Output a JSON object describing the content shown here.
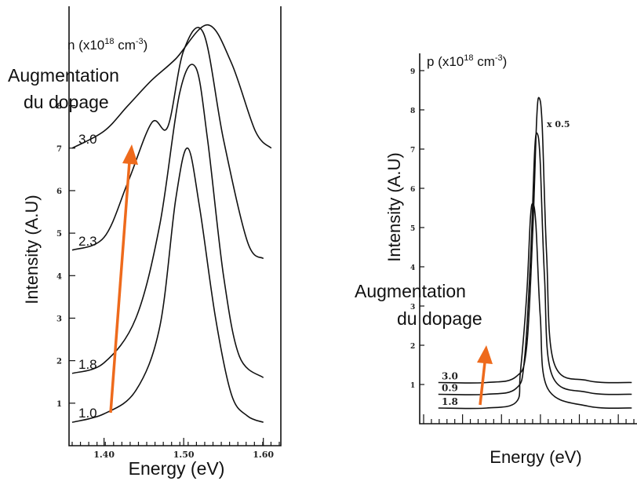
{
  "chart_data": [
    {
      "type": "line",
      "panel": "left",
      "xlabel": "Energy (eV)",
      "ylabel": "Intensity (A.U)",
      "legend_title": "n (x10",
      "legend_title_sup": "18",
      "legend_title_unit": " cm",
      "legend_title_unit_sup": "-3",
      "legend_title_close": ")",
      "annotation_lines": [
        "Augmentation",
        "du dopage"
      ],
      "x_ticks": [
        "1.40",
        "1.50",
        "1.60"
      ],
      "y_ticks": [
        "1",
        "2",
        "3",
        "4",
        "5",
        "6",
        "7",
        "8"
      ],
      "xlim": [
        1.36,
        1.62
      ],
      "series": [
        {
          "name": "1.0",
          "baseline": 0.55,
          "peak_x": 1.505,
          "peak_y": 7.0,
          "x": [
            1.36,
            1.4,
            1.44,
            1.47,
            1.49,
            1.505,
            1.52,
            1.54,
            1.56,
            1.58,
            1.6
          ],
          "y": [
            0.55,
            0.75,
            1.3,
            2.8,
            5.8,
            7.0,
            5.6,
            3.0,
            1.2,
            0.7,
            0.55
          ]
        },
        {
          "name": "1.8",
          "baseline": 1.7,
          "peak_x": 1.515,
          "peak_y": 8.9,
          "x": [
            1.36,
            1.4,
            1.44,
            1.47,
            1.495,
            1.515,
            1.53,
            1.55,
            1.57,
            1.6
          ],
          "y": [
            1.7,
            1.95,
            3.0,
            5.2,
            8.3,
            8.9,
            7.2,
            4.0,
            2.1,
            1.6
          ]
        },
        {
          "name": "2.3",
          "baseline": 4.6,
          "peak_x": 1.525,
          "peak_y": 9.7,
          "x": [
            1.36,
            1.4,
            1.43,
            1.46,
            1.48,
            1.5,
            1.525,
            1.55,
            1.58,
            1.6
          ],
          "y": [
            4.6,
            4.9,
            6.2,
            7.6,
            7.5,
            9.3,
            9.7,
            7.2,
            4.8,
            4.4
          ]
        },
        {
          "name": "3.0",
          "baseline": 7.0,
          "peak_x": 1.53,
          "peak_y": 9.9,
          "x": [
            1.36,
            1.4,
            1.43,
            1.46,
            1.49,
            1.53,
            1.56,
            1.59,
            1.61
          ],
          "y": [
            7.0,
            7.4,
            8.0,
            8.6,
            9.1,
            9.9,
            9.0,
            7.4,
            7.0
          ]
        }
      ]
    },
    {
      "type": "line",
      "panel": "right",
      "xlabel": "Energy (eV)",
      "ylabel": "Intensity (A.U)",
      "legend_title": "p (x10",
      "legend_title_sup": "18",
      "legend_title_unit": " cm",
      "legend_title_unit_sup": "-3",
      "legend_title_close": ")",
      "annotation_lines": [
        "Augmentation",
        "du dopage"
      ],
      "scale_note": "x 0.5",
      "y_ticks": [
        "1",
        "2",
        "3",
        "4",
        "5",
        "6",
        "7",
        "8",
        "9"
      ],
      "series": [
        {
          "name": "1.8",
          "baseline": 0.4,
          "peak_x": 0.52,
          "peak_y": 5.6
        },
        {
          "name": "0.9",
          "baseline": 0.75,
          "peak_x": 0.54,
          "peak_y": 7.4
        },
        {
          "name": "3.0",
          "baseline": 1.05,
          "peak_x": 0.55,
          "peak_y": 8.3
        }
      ]
    }
  ]
}
